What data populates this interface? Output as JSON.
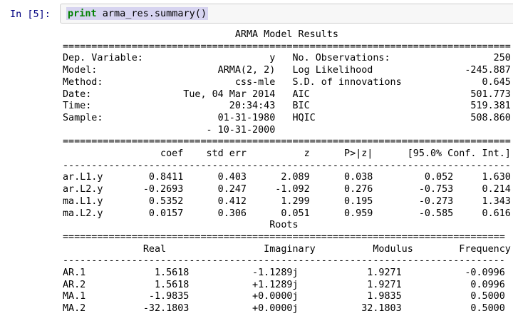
{
  "colors": {
    "page_bg": "#ffffff",
    "prompt_text": "#000080",
    "keyword": "#008000",
    "code_text": "#000000",
    "selection_bg": "#d7d4f0",
    "cell_bg": "#f7f7f7",
    "cell_border": "#cfcfcf",
    "output_text": "#000000"
  },
  "cell": {
    "prompt": "In [5]:",
    "code_keyword": "print",
    "code_rest": " arma_res.summary()"
  },
  "output": {
    "lines": [
      "                              ARMA Model Results                              ",
      "==============================================================================",
      "Dep. Variable:                      y   No. Observations:                  250",
      "Model:                     ARMA(2, 2)   Log Likelihood                -245.887",
      "Method:                       css-mle   S.D. of innovations              0.645",
      "Date:                Tue, 04 Mar 2014   AIC                            501.773",
      "Time:                        20:34:43   BIC                            519.381",
      "Sample:                    01-31-1980   HQIC                           508.860",
      "                         - 10-31-2000                                         ",
      "==============================================================================",
      "                 coef    std err          z      P>|z|      [95.0% Conf. Int.]",
      "------------------------------------------------------------------------------",
      "ar.L1.y        0.8411      0.403      2.089      0.038         0.052     1.630",
      "ar.L2.y       -0.2693      0.247     -1.092      0.276        -0.753     0.214",
      "ma.L1.y        0.5352      0.412      1.299      0.195        -0.273     1.343",
      "ma.L2.y        0.0157      0.306      0.051      0.959        -0.585     0.616",
      "                                    Roots                                    ",
      "=============================================================================",
      "              Real                 Imaginary          Modulus        Frequency",
      "-----------------------------------------------------------------------------",
      "AR.1            1.5618           -1.1289j            1.9271           -0.0996",
      "AR.2            1.5618           +1.1289j            1.9271            0.0996",
      "MA.1           -1.9835           +0.0000j            1.9835            0.5000",
      "MA.2          -32.1803           +0.0000j           32.1803            0.5000"
    ]
  },
  "summary": {
    "title": "ARMA Model Results",
    "info_left": [
      {
        "label": "Dep. Variable:",
        "value": "y"
      },
      {
        "label": "Model:",
        "value": "ARMA(2, 2)"
      },
      {
        "label": "Method:",
        "value": "css-mle"
      },
      {
        "label": "Date:",
        "value": "Tue, 04 Mar 2014"
      },
      {
        "label": "Time:",
        "value": "20:34:43"
      },
      {
        "label": "Sample:",
        "value": "01-31-1980"
      },
      {
        "label": "",
        "value": "- 10-31-2000"
      }
    ],
    "info_right": [
      {
        "label": "No. Observations:",
        "value": "250"
      },
      {
        "label": "Log Likelihood",
        "value": "-245.887"
      },
      {
        "label": "S.D. of innovations",
        "value": "0.645"
      },
      {
        "label": "AIC",
        "value": "501.773"
      },
      {
        "label": "BIC",
        "value": "519.381"
      },
      {
        "label": "HQIC",
        "value": "508.860"
      }
    ],
    "coef_table": {
      "headers": [
        "",
        "coef",
        "std err",
        "z",
        "P>|z|",
        "[95.0% Conf. Int.]"
      ],
      "rows": [
        {
          "name": "ar.L1.y",
          "coef": "0.8411",
          "std_err": "0.403",
          "z": "2.089",
          "p": "0.038",
          "ci_low": "0.052",
          "ci_high": "1.630"
        },
        {
          "name": "ar.L2.y",
          "coef": "-0.2693",
          "std_err": "0.247",
          "z": "-1.092",
          "p": "0.276",
          "ci_low": "-0.753",
          "ci_high": "0.214"
        },
        {
          "name": "ma.L1.y",
          "coef": "0.5352",
          "std_err": "0.412",
          "z": "1.299",
          "p": "0.195",
          "ci_low": "-0.273",
          "ci_high": "1.343"
        },
        {
          "name": "ma.L2.y",
          "coef": "0.0157",
          "std_err": "0.306",
          "z": "0.051",
          "p": "0.959",
          "ci_low": "-0.585",
          "ci_high": "0.616"
        }
      ]
    },
    "roots_table": {
      "title": "Roots",
      "headers": [
        "",
        "Real",
        "Imaginary",
        "Modulus",
        "Frequency"
      ],
      "rows": [
        {
          "name": "AR.1",
          "real": "1.5618",
          "imaginary": "-1.1289j",
          "modulus": "1.9271",
          "frequency": "-0.0996"
        },
        {
          "name": "AR.2",
          "real": "1.5618",
          "imaginary": "+1.1289j",
          "modulus": "1.9271",
          "frequency": "0.0996"
        },
        {
          "name": "MA.1",
          "real": "-1.9835",
          "imaginary": "+0.0000j",
          "modulus": "1.9835",
          "frequency": "0.5000"
        },
        {
          "name": "MA.2",
          "real": "-32.1803",
          "imaginary": "+0.0000j",
          "modulus": "32.1803",
          "frequency": "0.5000"
        }
      ]
    }
  }
}
